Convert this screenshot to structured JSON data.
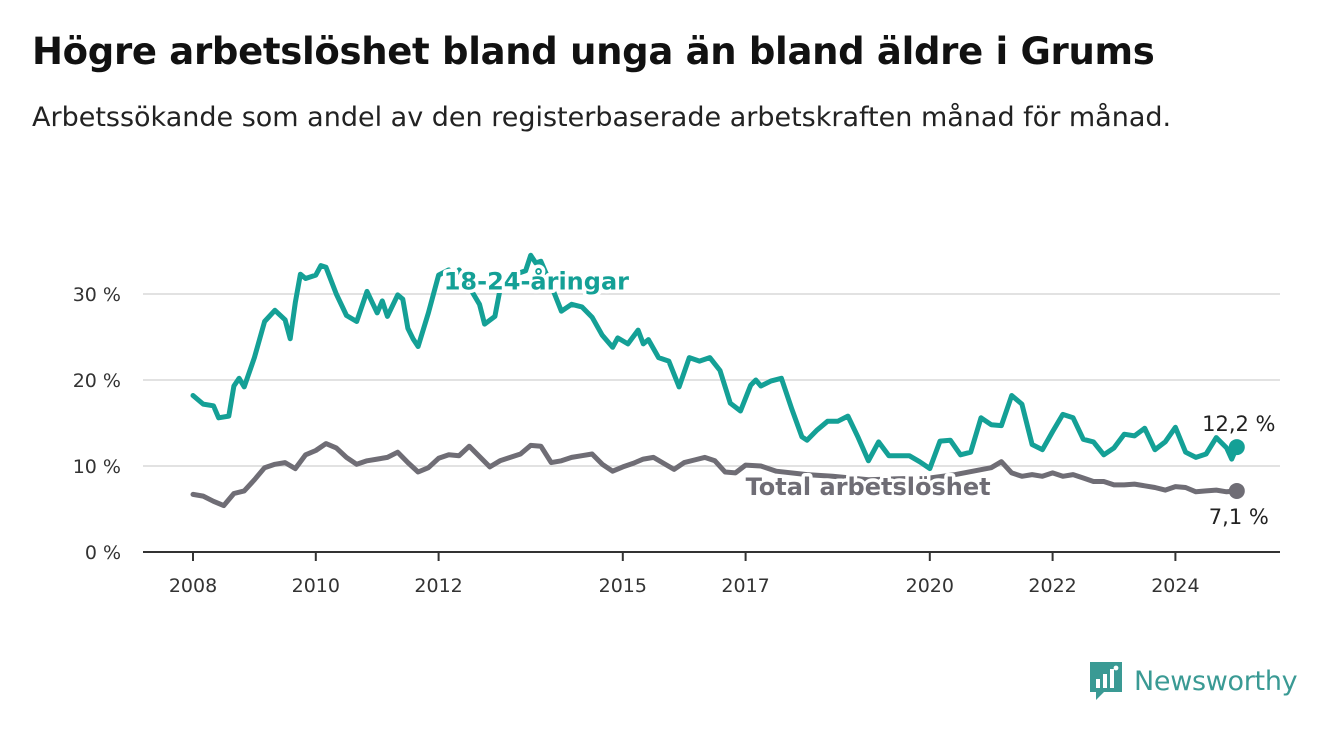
{
  "header": {
    "title": "Högre arbetslöshet bland unga än bland äldre i Grums",
    "subtitle": "Arbetssökande som andel av den registerbaserade arbetskraften månad för månad."
  },
  "brand": {
    "name": "Newsworthy",
    "icon": "newsworthy-chart-icon",
    "color": "#3a9a94"
  },
  "chart_data": {
    "type": "line",
    "title": "Högre arbetslöshet bland unga än bland äldre i Grums",
    "subtitle": "Arbetssökande som andel av den registerbaserade arbetskraften månad för månad.",
    "xlabel": "",
    "ylabel": "",
    "xlim": [
      "2008-01",
      "2025-06"
    ],
    "ylim": [
      0,
      35
    ],
    "y_ticks": [
      0,
      10,
      20,
      30
    ],
    "y_tick_labels": [
      "0 %",
      "10 %",
      "20 %",
      "30 %"
    ],
    "x_ticks": [
      "2008-01",
      "2010-01",
      "2012-01",
      "2015-01",
      "2017-01",
      "2020-01",
      "2022-01",
      "2024-01"
    ],
    "x_tick_labels": [
      "2008",
      "2010",
      "2012",
      "2015",
      "2017",
      "2020",
      "2022",
      "2024"
    ],
    "grid": "horizontal",
    "legend": "inline labels",
    "series": [
      {
        "name": "18-24-åringar",
        "color": "#14a096",
        "end_label": "12,2 %",
        "label_anchor": [
          "2012-02",
          30.5
        ],
        "points": [
          [
            "2008-01",
            18.2
          ],
          [
            "2008-03",
            17.2
          ],
          [
            "2008-05",
            17.0
          ],
          [
            "2008-06",
            15.6
          ],
          [
            "2008-08",
            15.8
          ],
          [
            "2008-09",
            19.3
          ],
          [
            "2008-10",
            20.2
          ],
          [
            "2008-11",
            19.2
          ],
          [
            "2009-01",
            22.6
          ],
          [
            "2009-03",
            26.8
          ],
          [
            "2009-05",
            28.1
          ],
          [
            "2009-07",
            27.0
          ],
          [
            "2009-08",
            24.8
          ],
          [
            "2009-09",
            29.0
          ],
          [
            "2009-10",
            32.3
          ],
          [
            "2009-11",
            31.8
          ],
          [
            "2010-01",
            32.2
          ],
          [
            "2010-02",
            33.3
          ],
          [
            "2010-03",
            33.1
          ],
          [
            "2010-05",
            30.0
          ],
          [
            "2010-07",
            27.5
          ],
          [
            "2010-09",
            26.8
          ],
          [
            "2010-11",
            30.3
          ],
          [
            "2011-01",
            27.8
          ],
          [
            "2011-02",
            29.2
          ],
          [
            "2011-03",
            27.4
          ],
          [
            "2011-05",
            29.9
          ],
          [
            "2011-06",
            29.4
          ],
          [
            "2011-07",
            26.0
          ],
          [
            "2011-08",
            24.8
          ],
          [
            "2011-09",
            23.9
          ],
          [
            "2011-11",
            27.8
          ],
          [
            "2012-01",
            32.2
          ],
          [
            "2012-03",
            32.8
          ],
          [
            "2012-04",
            32.0
          ],
          [
            "2012-05",
            32.8
          ],
          [
            "2012-07",
            30.8
          ],
          [
            "2012-09",
            28.8
          ],
          [
            "2012-10",
            26.5
          ],
          [
            "2012-12",
            27.4
          ],
          [
            "2013-01",
            30.5
          ],
          [
            "2013-02",
            31.5
          ],
          [
            "2013-04",
            32.3
          ],
          [
            "2013-06",
            32.7
          ],
          [
            "2013-07",
            34.5
          ],
          [
            "2013-08",
            33.6
          ],
          [
            "2013-09",
            33.8
          ],
          [
            "2013-11",
            31.0
          ],
          [
            "2014-01",
            28.0
          ],
          [
            "2014-03",
            28.8
          ],
          [
            "2014-05",
            28.5
          ],
          [
            "2014-07",
            27.3
          ],
          [
            "2014-09",
            25.2
          ],
          [
            "2014-11",
            23.8
          ],
          [
            "2014-12",
            24.9
          ],
          [
            "2015-02",
            24.2
          ],
          [
            "2015-04",
            25.8
          ],
          [
            "2015-05",
            24.2
          ],
          [
            "2015-06",
            24.7
          ],
          [
            "2015-08",
            22.6
          ],
          [
            "2015-10",
            22.2
          ],
          [
            "2015-12",
            19.2
          ],
          [
            "2016-02",
            22.6
          ],
          [
            "2016-04",
            22.2
          ],
          [
            "2016-06",
            22.6
          ],
          [
            "2016-08",
            21.1
          ],
          [
            "2016-10",
            17.3
          ],
          [
            "2016-12",
            16.4
          ],
          [
            "2017-02",
            19.4
          ],
          [
            "2017-03",
            20.0
          ],
          [
            "2017-04",
            19.3
          ],
          [
            "2017-06",
            19.9
          ],
          [
            "2017-08",
            20.2
          ],
          [
            "2017-10",
            16.7
          ],
          [
            "2017-12",
            13.4
          ],
          [
            "2018-01",
            13.0
          ],
          [
            "2018-03",
            14.2
          ],
          [
            "2018-05",
            15.2
          ],
          [
            "2018-07",
            15.2
          ],
          [
            "2018-09",
            15.8
          ],
          [
            "2018-11",
            13.3
          ],
          [
            "2019-01",
            10.6
          ],
          [
            "2019-03",
            12.8
          ],
          [
            "2019-05",
            11.2
          ],
          [
            "2019-07",
            11.2
          ],
          [
            "2019-09",
            11.2
          ],
          [
            "2019-11",
            10.5
          ],
          [
            "2020-01",
            9.7
          ],
          [
            "2020-03",
            12.9
          ],
          [
            "2020-05",
            13.0
          ],
          [
            "2020-07",
            11.3
          ],
          [
            "2020-09",
            11.6
          ],
          [
            "2020-11",
            15.6
          ],
          [
            "2021-01",
            14.8
          ],
          [
            "2021-03",
            14.7
          ],
          [
            "2021-05",
            18.2
          ],
          [
            "2021-07",
            17.2
          ],
          [
            "2021-09",
            12.5
          ],
          [
            "2021-11",
            11.9
          ],
          [
            "2022-01",
            14.0
          ],
          [
            "2022-03",
            16.0
          ],
          [
            "2022-05",
            15.6
          ],
          [
            "2022-07",
            13.1
          ],
          [
            "2022-09",
            12.8
          ],
          [
            "2022-11",
            11.3
          ],
          [
            "2023-01",
            12.1
          ],
          [
            "2023-03",
            13.7
          ],
          [
            "2023-05",
            13.5
          ],
          [
            "2023-07",
            14.4
          ],
          [
            "2023-09",
            11.9
          ],
          [
            "2023-11",
            12.8
          ],
          [
            "2024-01",
            14.5
          ],
          [
            "2024-03",
            11.6
          ],
          [
            "2024-05",
            11.0
          ],
          [
            "2024-07",
            11.4
          ],
          [
            "2024-09",
            13.3
          ],
          [
            "2024-11",
            12.1
          ],
          [
            "2024-12",
            10.8
          ],
          [
            "2025-01",
            12.2
          ]
        ]
      },
      {
        "name": "Total arbetslöshet",
        "color": "#6f6d75",
        "end_label": "7,1 %",
        "label_anchor": [
          "2017-01",
          6.6
        ],
        "points": [
          [
            "2008-01",
            6.7
          ],
          [
            "2008-03",
            6.5
          ],
          [
            "2008-05",
            5.9
          ],
          [
            "2008-07",
            5.4
          ],
          [
            "2008-09",
            6.8
          ],
          [
            "2008-11",
            7.1
          ],
          [
            "2009-01",
            8.4
          ],
          [
            "2009-03",
            9.8
          ],
          [
            "2009-05",
            10.2
          ],
          [
            "2009-07",
            10.4
          ],
          [
            "2009-09",
            9.7
          ],
          [
            "2009-11",
            11.3
          ],
          [
            "2010-01",
            11.8
          ],
          [
            "2010-03",
            12.6
          ],
          [
            "2010-05",
            12.1
          ],
          [
            "2010-07",
            11.0
          ],
          [
            "2010-09",
            10.2
          ],
          [
            "2010-11",
            10.6
          ],
          [
            "2011-01",
            10.8
          ],
          [
            "2011-03",
            11.0
          ],
          [
            "2011-05",
            11.6
          ],
          [
            "2011-07",
            10.4
          ],
          [
            "2011-09",
            9.3
          ],
          [
            "2011-11",
            9.8
          ],
          [
            "2012-01",
            10.9
          ],
          [
            "2012-03",
            11.3
          ],
          [
            "2012-05",
            11.2
          ],
          [
            "2012-07",
            12.3
          ],
          [
            "2012-09",
            11.1
          ],
          [
            "2012-11",
            9.9
          ],
          [
            "2013-01",
            10.6
          ],
          [
            "2013-03",
            11.0
          ],
          [
            "2013-05",
            11.4
          ],
          [
            "2013-07",
            12.4
          ],
          [
            "2013-09",
            12.3
          ],
          [
            "2013-11",
            10.4
          ],
          [
            "2014-01",
            10.6
          ],
          [
            "2014-03",
            11.0
          ],
          [
            "2014-05",
            11.2
          ],
          [
            "2014-07",
            11.4
          ],
          [
            "2014-09",
            10.2
          ],
          [
            "2014-11",
            9.4
          ],
          [
            "2015-01",
            9.9
          ],
          [
            "2015-03",
            10.3
          ],
          [
            "2015-05",
            10.8
          ],
          [
            "2015-07",
            11.0
          ],
          [
            "2015-09",
            10.3
          ],
          [
            "2015-11",
            9.6
          ],
          [
            "2016-01",
            10.4
          ],
          [
            "2016-03",
            10.7
          ],
          [
            "2016-05",
            11.0
          ],
          [
            "2016-07",
            10.6
          ],
          [
            "2016-09",
            9.3
          ],
          [
            "2016-11",
            9.2
          ],
          [
            "2017-01",
            10.1
          ],
          [
            "2017-04",
            10.0
          ],
          [
            "2017-07",
            9.4
          ],
          [
            "2018-01",
            9.0
          ],
          [
            "2018-06",
            8.8
          ],
          [
            "2019-01",
            8.4
          ],
          [
            "2019-06",
            8.5
          ],
          [
            "2020-01",
            8.6
          ],
          [
            "2020-06",
            9.0
          ],
          [
            "2021-01",
            9.8
          ],
          [
            "2021-03",
            10.5
          ],
          [
            "2021-05",
            9.2
          ],
          [
            "2021-07",
            8.8
          ],
          [
            "2021-09",
            9.0
          ],
          [
            "2021-11",
            8.8
          ],
          [
            "2022-01",
            9.2
          ],
          [
            "2022-03",
            8.8
          ],
          [
            "2022-05",
            9.0
          ],
          [
            "2022-07",
            8.6
          ],
          [
            "2022-09",
            8.2
          ],
          [
            "2022-11",
            8.2
          ],
          [
            "2023-01",
            7.8
          ],
          [
            "2023-03",
            7.8
          ],
          [
            "2023-05",
            7.9
          ],
          [
            "2023-07",
            7.7
          ],
          [
            "2023-09",
            7.5
          ],
          [
            "2023-11",
            7.2
          ],
          [
            "2024-01",
            7.6
          ],
          [
            "2024-03",
            7.5
          ],
          [
            "2024-05",
            7.0
          ],
          [
            "2024-07",
            7.1
          ],
          [
            "2024-09",
            7.2
          ],
          [
            "2024-11",
            7.0
          ],
          [
            "2025-01",
            7.1
          ]
        ]
      }
    ]
  }
}
